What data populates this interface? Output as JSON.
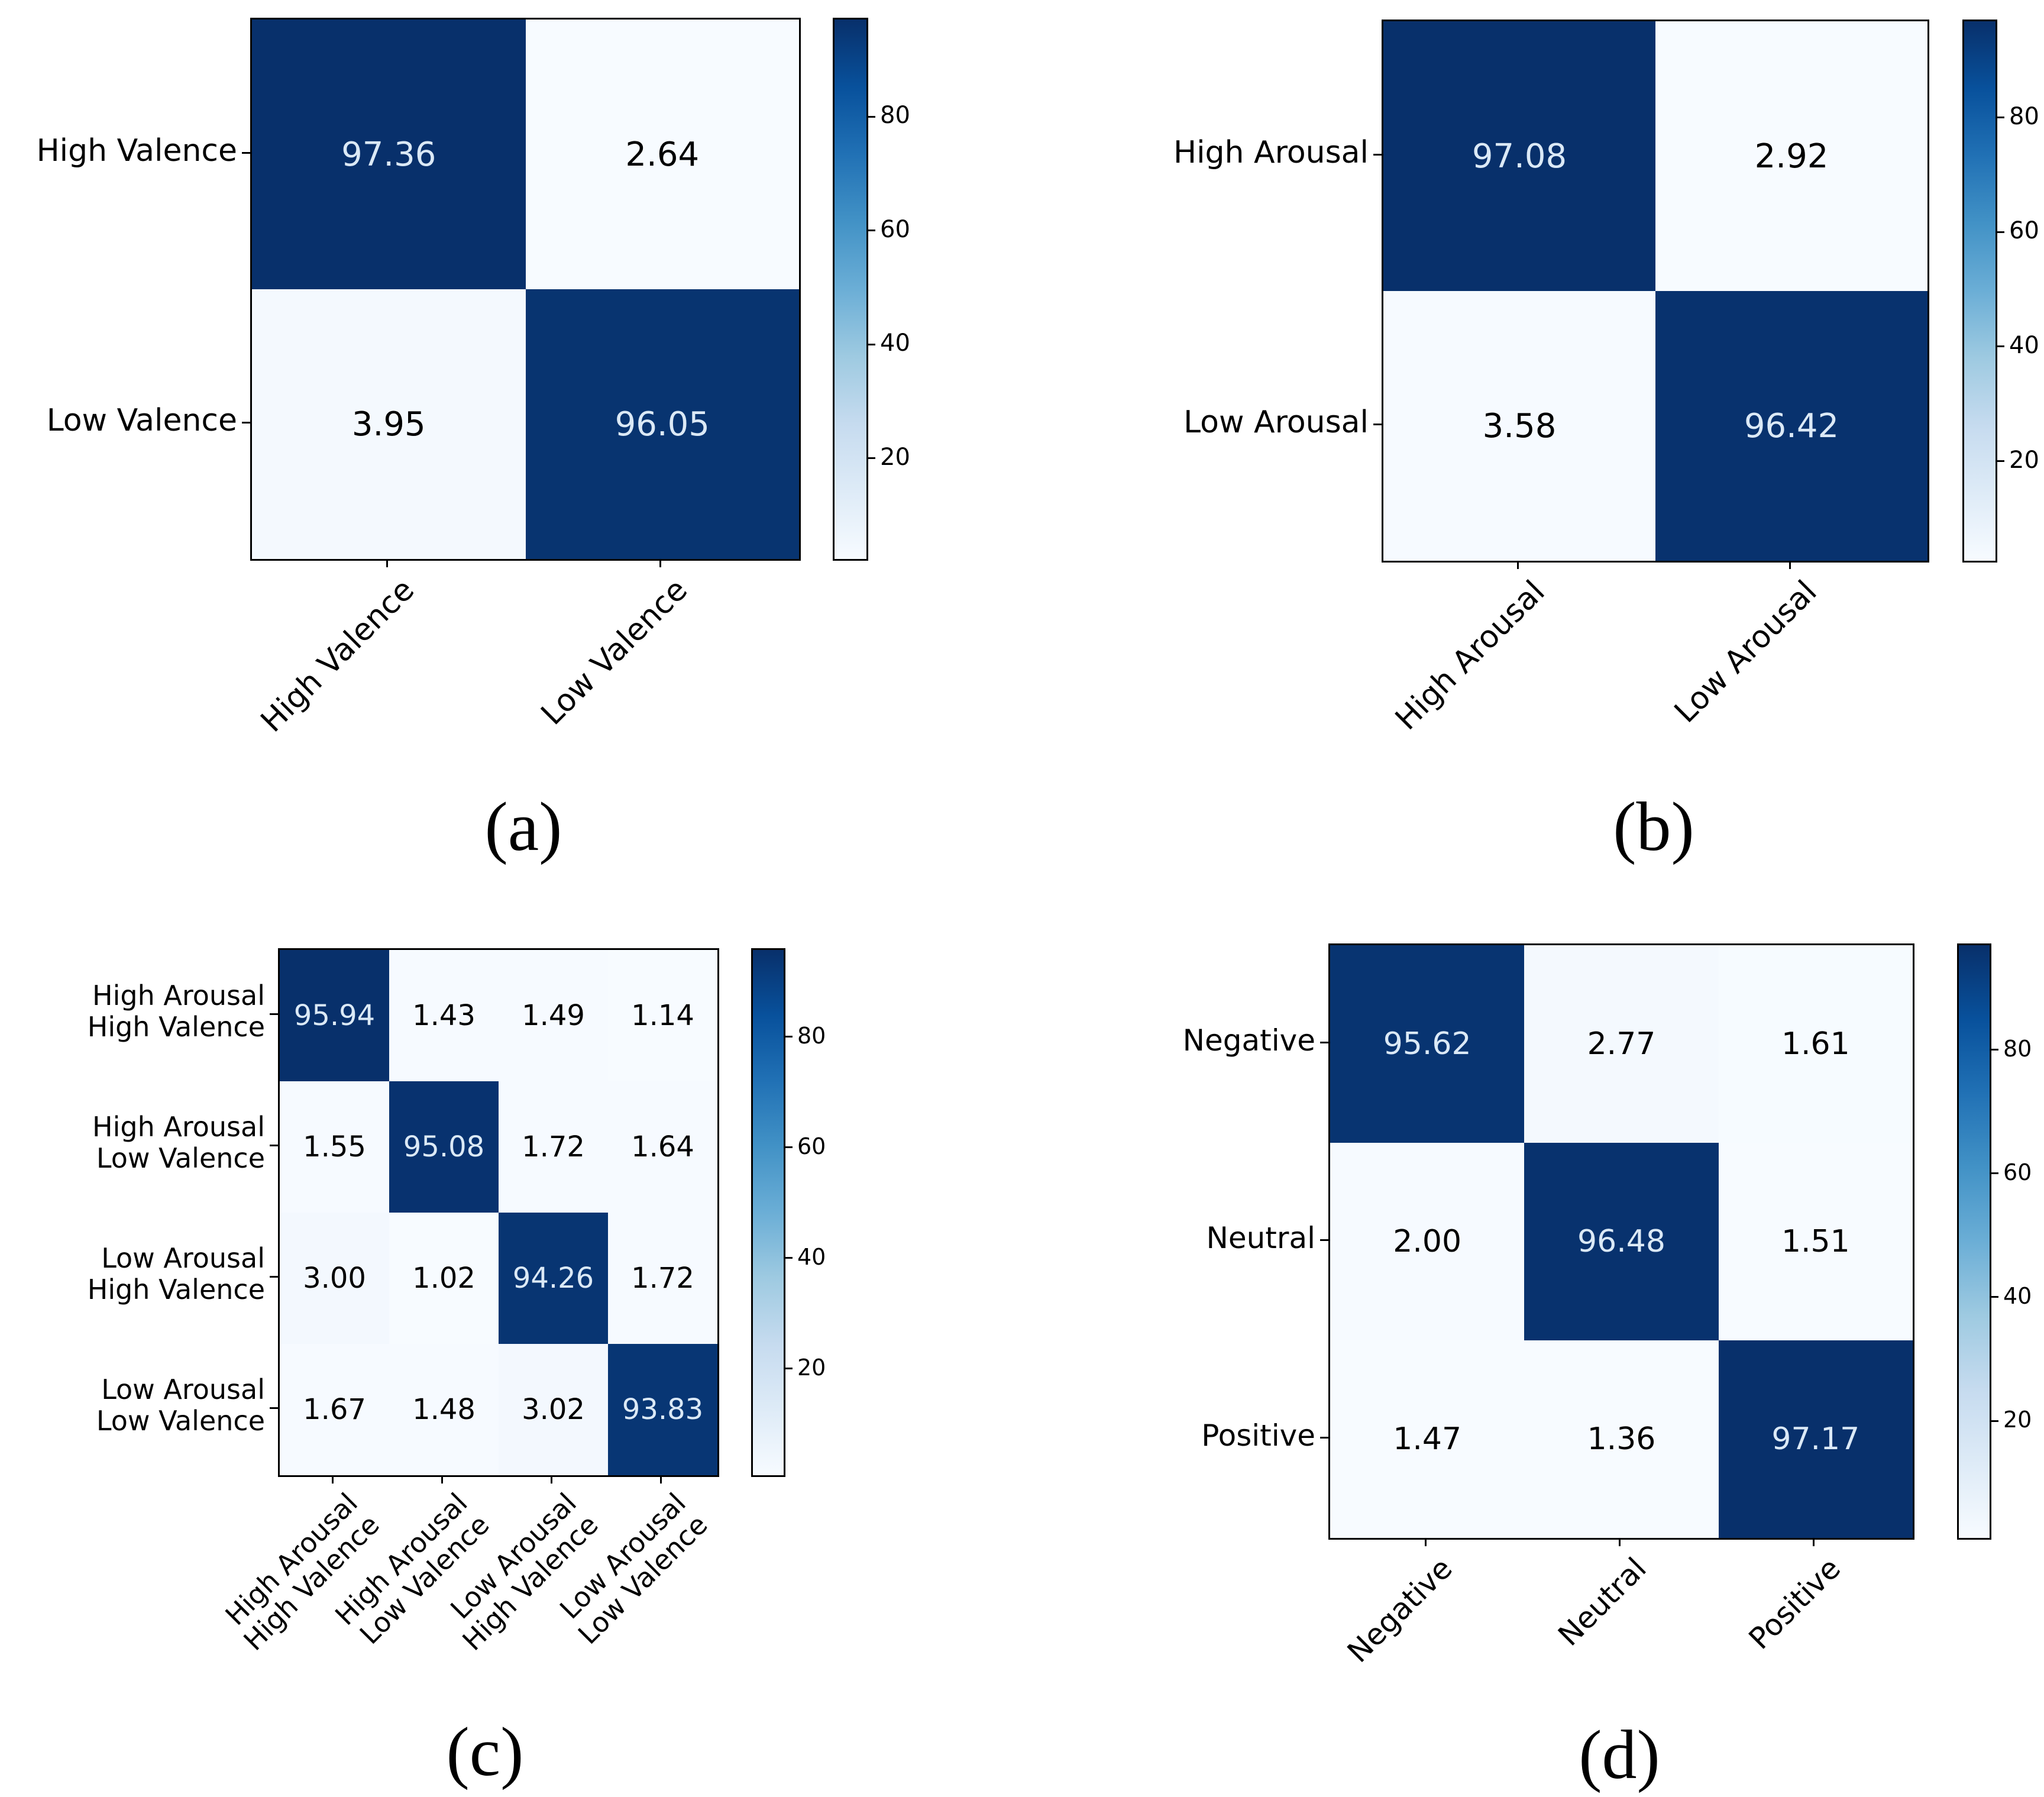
{
  "figure_type": "confusion-matrix-grid",
  "colors": {
    "cmap_name": "Blues",
    "cmap_stops": [
      "#f7fbff",
      "#deebf7",
      "#c6dbef",
      "#9ecae1",
      "#6baed6",
      "#4292c6",
      "#2171b5",
      "#08519c",
      "#08306b"
    ],
    "cell_text_on_dark": "#dbe9f6",
    "cell_text_on_light": "#000000",
    "axis_color": "#000000"
  },
  "chart_data": [
    {
      "type": "heatmap",
      "panel": "a",
      "caption": "(a)",
      "row_labels": [
        [
          "High Valence"
        ],
        [
          "Low Valence"
        ]
      ],
      "col_labels": [
        [
          "High Valence"
        ],
        [
          "Low Valence"
        ]
      ],
      "values": [
        [
          97.36,
          2.64
        ],
        [
          3.95,
          96.05
        ]
      ],
      "colorbar_ticks": [
        20,
        40,
        60,
        80
      ],
      "legend_position": "right-colorbar",
      "grid": false
    },
    {
      "type": "heatmap",
      "panel": "b",
      "caption": "(b)",
      "row_labels": [
        [
          "High Arousal"
        ],
        [
          "Low Arousal"
        ]
      ],
      "col_labels": [
        [
          "High Arousal"
        ],
        [
          "Low Arousal"
        ]
      ],
      "values": [
        [
          97.08,
          2.92
        ],
        [
          3.58,
          96.42
        ]
      ],
      "colorbar_ticks": [
        20,
        40,
        60,
        80
      ],
      "legend_position": "right-colorbar",
      "grid": false
    },
    {
      "type": "heatmap",
      "panel": "c",
      "caption": "(c)",
      "row_labels": [
        [
          "High Arousal",
          "High Valence"
        ],
        [
          "High Arousal",
          "Low Valence"
        ],
        [
          "Low Arousal",
          "High Valence"
        ],
        [
          "Low Arousal",
          "Low Valence"
        ]
      ],
      "col_labels": [
        [
          "High Arousal",
          "High Valence"
        ],
        [
          "High Arousal",
          "Low Valence"
        ],
        [
          "Low Arousal",
          "High Valence"
        ],
        [
          "Low Arousal",
          "Low Valence"
        ]
      ],
      "values": [
        [
          95.94,
          1.43,
          1.49,
          1.14
        ],
        [
          1.55,
          95.08,
          1.72,
          1.64
        ],
        [
          3.0,
          1.02,
          94.26,
          1.72
        ],
        [
          1.67,
          1.48,
          3.02,
          93.83
        ]
      ],
      "colorbar_ticks": [
        20,
        40,
        60,
        80
      ],
      "legend_position": "right-colorbar",
      "grid": false
    },
    {
      "type": "heatmap",
      "panel": "d",
      "caption": "(d)",
      "row_labels": [
        [
          "Negative"
        ],
        [
          "Neutral"
        ],
        [
          "Positive"
        ]
      ],
      "col_labels": [
        [
          "Negative"
        ],
        [
          "Neutral"
        ],
        [
          "Positive"
        ]
      ],
      "values": [
        [
          95.62,
          2.77,
          1.61
        ],
        [
          2.0,
          96.48,
          1.51
        ],
        [
          1.47,
          1.36,
          97.17
        ]
      ],
      "colorbar_ticks": [
        20,
        40,
        60,
        80
      ],
      "legend_position": "right-colorbar",
      "grid": false
    }
  ]
}
